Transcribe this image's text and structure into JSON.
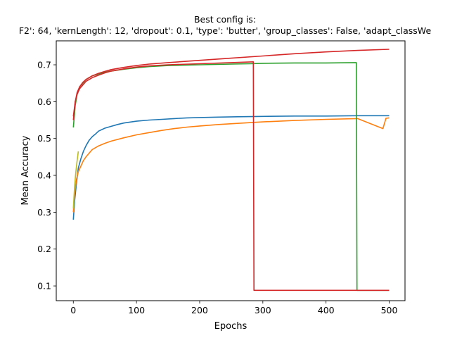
{
  "chart_data": {
    "type": "line",
    "title": "Best config is:",
    "subtitle": "F2': 64, 'kernLength': 12, 'dropout': 0.1, 'type': 'butter', 'group_classes': False, 'adapt_classWe",
    "xlabel": "Epochs",
    "ylabel": "Mean Accuracy",
    "xlim": [
      -27,
      525
    ],
    "ylim": [
      0.06,
      0.765
    ],
    "xticks": [
      0,
      100,
      200,
      300,
      400,
      500
    ],
    "yticks": [
      0.1,
      0.2,
      0.3,
      0.4,
      0.5,
      0.6,
      0.7
    ],
    "grid": false,
    "legend": "none",
    "series": [
      {
        "color": "#1f77b4",
        "x": [
          0,
          2,
          5,
          8,
          12,
          16,
          20,
          25,
          30,
          35,
          40,
          50,
          60,
          70,
          80,
          100,
          120,
          140,
          160,
          180,
          200,
          230,
          260,
          300,
          350,
          400,
          450,
          500
        ],
        "y": [
          0.28,
          0.33,
          0.38,
          0.42,
          0.445,
          0.465,
          0.48,
          0.495,
          0.505,
          0.512,
          0.52,
          0.528,
          0.533,
          0.538,
          0.542,
          0.547,
          0.55,
          0.552,
          0.554,
          0.556,
          0.557,
          0.558,
          0.559,
          0.56,
          0.561,
          0.561,
          0.562,
          0.562
        ]
      },
      {
        "color": "#ff7f0e",
        "x": [
          0,
          2,
          5,
          8,
          12,
          16,
          20,
          25,
          30,
          40,
          50,
          60,
          80,
          100,
          120,
          140,
          160,
          180,
          200,
          230,
          260,
          300,
          350,
          400,
          450,
          490,
          495,
          500
        ],
        "y": [
          0.3,
          0.35,
          0.39,
          0.41,
          0.425,
          0.44,
          0.45,
          0.46,
          0.47,
          0.48,
          0.487,
          0.493,
          0.502,
          0.51,
          0.516,
          0.522,
          0.527,
          0.531,
          0.534,
          0.538,
          0.541,
          0.545,
          0.549,
          0.552,
          0.554,
          0.527,
          0.555,
          0.556
        ]
      },
      {
        "color": "#2ca02c",
        "x": [
          0,
          3,
          6,
          10,
          15,
          20,
          30,
          40,
          50,
          60,
          80,
          100,
          120,
          150,
          200,
          250,
          280,
          300,
          350,
          400,
          448,
          449,
          450,
          500
        ],
        "y": [
          0.53,
          0.59,
          0.62,
          0.64,
          0.65,
          0.66,
          0.67,
          0.675,
          0.68,
          0.683,
          0.688,
          0.692,
          0.695,
          0.698,
          0.7,
          0.702,
          0.703,
          0.704,
          0.705,
          0.705,
          0.706,
          0.088,
          0.088,
          0.088
        ]
      },
      {
        "color": "#d62728",
        "x": [
          0,
          3,
          6,
          10,
          15,
          20,
          30,
          40,
          50,
          60,
          80,
          100,
          120,
          150,
          200,
          250,
          285,
          286,
          300,
          350,
          400,
          450,
          500
        ],
        "y": [
          0.55,
          0.6,
          0.62,
          0.635,
          0.645,
          0.655,
          0.665,
          0.672,
          0.678,
          0.683,
          0.689,
          0.694,
          0.697,
          0.7,
          0.703,
          0.706,
          0.708,
          0.088,
          0.088,
          0.088,
          0.088,
          0.088,
          0.088
        ]
      },
      {
        "color": "#d62728",
        "x": [
          0,
          3,
          6,
          10,
          15,
          20,
          30,
          40,
          50,
          60,
          80,
          100,
          120,
          150,
          200,
          250,
          300,
          350,
          400,
          450,
          500
        ],
        "y": [
          0.56,
          0.6,
          0.625,
          0.64,
          0.652,
          0.66,
          0.67,
          0.677,
          0.682,
          0.687,
          0.693,
          0.698,
          0.702,
          0.706,
          0.712,
          0.718,
          0.724,
          0.73,
          0.735,
          0.739,
          0.742
        ]
      },
      {
        "color": "#bcbd22",
        "x": [
          0,
          2,
          4,
          6,
          8
        ],
        "y": [
          0.31,
          0.37,
          0.41,
          0.44,
          0.465
        ]
      }
    ]
  }
}
